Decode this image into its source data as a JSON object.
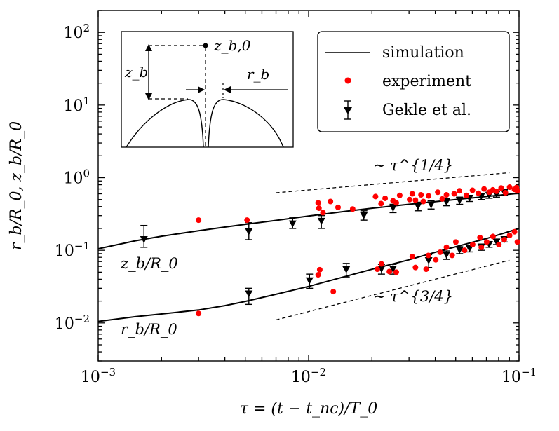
{
  "chart_data": {
    "type": "scatter",
    "xscale": "log",
    "yscale": "log",
    "xlim": [
      0.001,
      0.1
    ],
    "ylim": [
      0.003,
      200
    ],
    "xticks": [
      {
        "base": "10",
        "exp": "−3"
      },
      {
        "base": "10",
        "exp": "−2"
      },
      {
        "base": "10",
        "exp": "−1"
      }
    ],
    "yticks": [
      {
        "base": "10",
        "exp": "−2"
      },
      {
        "base": "10",
        "exp": "−1"
      },
      {
        "base": "10",
        "exp": "0"
      },
      {
        "base": "10",
        "exp": "1"
      },
      {
        "base": "10",
        "exp": "2"
      }
    ],
    "xlabel": "τ = (t − t_nc)/T_0",
    "ylabel": "r_b/R_0, z_b/R_0",
    "legend": {
      "position": "top-right",
      "entries": [
        "simulation",
        "experiment",
        "Gekle et al."
      ]
    },
    "colors": {
      "simulation": "#000000",
      "experiment": "#ff0000",
      "gekle": "#000000"
    },
    "curve_labels": {
      "z": "z_b/R_0",
      "r": "r_b/R_0"
    },
    "slope_labels": {
      "upper": "∼ τ^{1/4}",
      "lower": "∼ τ^{3/4}"
    },
    "inset_labels": {
      "zb0": "z_b,0",
      "zb": "z_b",
      "rb": "r_b"
    },
    "series": [
      {
        "name": "simulation",
        "kind": "line",
        "x": [
          0.001,
          0.0015,
          0.002,
          0.003,
          0.004,
          0.005,
          0.007,
          0.01,
          0.015,
          0.02,
          0.03,
          0.04,
          0.05,
          0.07,
          0.1
        ],
        "y": [
          0.105,
          0.135,
          0.156,
          0.186,
          0.209,
          0.228,
          0.258,
          0.297,
          0.344,
          0.38,
          0.43,
          0.468,
          0.5,
          0.55,
          0.61
        ]
      },
      {
        "name": "simulation",
        "kind": "line",
        "x": [
          0.001,
          0.0015,
          0.002,
          0.003,
          0.004,
          0.005,
          0.007,
          0.01,
          0.015,
          0.02,
          0.03,
          0.04,
          0.05,
          0.07,
          0.1
        ],
        "y": [
          0.0105,
          0.0122,
          0.0133,
          0.0151,
          0.0173,
          0.0198,
          0.0248,
          0.0318,
          0.0438,
          0.0548,
          0.074,
          0.094,
          0.112,
          0.145,
          0.2
        ]
      },
      {
        "name": "experiment",
        "kind": "points",
        "x": [
          0.003,
          0.0051,
          0.0111,
          0.0112,
          0.0117,
          0.0127,
          0.0138,
          0.0162,
          0.0208,
          0.0221,
          0.0231,
          0.0252,
          0.0261,
          0.0271,
          0.0302,
          0.0311,
          0.0322,
          0.0342,
          0.0351,
          0.0372,
          0.0411,
          0.0432,
          0.0452,
          0.0492,
          0.0521,
          0.0562,
          0.0601,
          0.0642,
          0.0682,
          0.0722,
          0.0751,
          0.0782,
          0.0822,
          0.0862,
          0.0902,
          0.0951,
          0.0972,
          0.0981
        ],
        "y": [
          0.26,
          0.26,
          0.45,
          0.38,
          0.33,
          0.47,
          0.39,
          0.37,
          0.55,
          0.44,
          0.52,
          0.48,
          0.45,
          0.57,
          0.5,
          0.6,
          0.49,
          0.58,
          0.47,
          0.56,
          0.63,
          0.51,
          0.58,
          0.6,
          0.66,
          0.57,
          0.67,
          0.61,
          0.7,
          0.63,
          0.68,
          0.65,
          0.72,
          0.62,
          0.74,
          0.69,
          0.73,
          0.66
        ]
      },
      {
        "name": "experiment",
        "kind": "points",
        "x": [
          0.003,
          0.0111,
          0.0113,
          0.0131,
          0.0212,
          0.0222,
          0.0242,
          0.0261,
          0.0311,
          0.0322,
          0.0362,
          0.0371,
          0.0402,
          0.0422,
          0.0452,
          0.0481,
          0.0501,
          0.0551,
          0.0602,
          0.0652,
          0.0662,
          0.0702,
          0.0752,
          0.0802,
          0.0851,
          0.0902,
          0.0952,
          0.0982
        ],
        "y": [
          0.0135,
          0.046,
          0.054,
          0.027,
          0.055,
          0.065,
          0.051,
          0.05,
          0.082,
          0.058,
          0.055,
          0.085,
          0.074,
          0.094,
          0.11,
          0.085,
          0.13,
          0.1,
          0.12,
          0.15,
          0.11,
          0.13,
          0.155,
          0.12,
          0.14,
          0.16,
          0.18,
          0.13
        ]
      },
      {
        "name": "Gekle et al.",
        "kind": "errorbars",
        "x": [
          0.00165,
          0.0052,
          0.0084,
          0.0115,
          0.0183,
          0.0252,
          0.0331,
          0.0382,
          0.0452,
          0.0522,
          0.0582,
          0.0662,
          0.0721,
          0.0782,
          0.0851
        ],
        "y": [
          0.14,
          0.18,
          0.23,
          0.25,
          0.3,
          0.38,
          0.4,
          0.42,
          0.46,
          0.48,
          0.52,
          0.55,
          0.57,
          0.59,
          0.62
        ],
        "lo": [
          0.11,
          0.14,
          0.2,
          0.2,
          0.26,
          0.33,
          0.35,
          0.37,
          0.41,
          0.43,
          0.47,
          0.5,
          0.52,
          0.54,
          0.57
        ],
        "hi": [
          0.22,
          0.24,
          0.28,
          0.3,
          0.35,
          0.43,
          0.46,
          0.48,
          0.52,
          0.54,
          0.57,
          0.61,
          0.63,
          0.65,
          0.68
        ]
      },
      {
        "name": "Gekle et al.",
        "kind": "errorbars",
        "x": [
          0.0052,
          0.0101,
          0.0151,
          0.0222,
          0.0252,
          0.0372,
          0.0452,
          0.0522,
          0.0582,
          0.0662,
          0.0721,
          0.0782,
          0.0851
        ],
        "y": [
          0.025,
          0.038,
          0.054,
          0.055,
          0.055,
          0.072,
          0.086,
          0.1,
          0.105,
          0.11,
          0.12,
          0.13,
          0.14
        ],
        "lo": [
          0.018,
          0.03,
          0.043,
          0.047,
          0.047,
          0.058,
          0.075,
          0.09,
          0.095,
          0.1,
          0.11,
          0.12,
          0.13
        ],
        "hi": [
          0.03,
          0.047,
          0.066,
          0.064,
          0.064,
          0.087,
          0.098,
          0.112,
          0.117,
          0.122,
          0.132,
          0.142,
          0.152
        ]
      },
      {
        "name": "∼ τ^{1/4}",
        "kind": "guide",
        "x": [
          0.007,
          0.09
        ],
        "y": [
          0.62,
          1.17
        ]
      },
      {
        "name": "∼ τ^{3/4}",
        "kind": "guide",
        "x": [
          0.007,
          0.09
        ],
        "y": [
          0.011,
          0.073
        ]
      }
    ]
  }
}
